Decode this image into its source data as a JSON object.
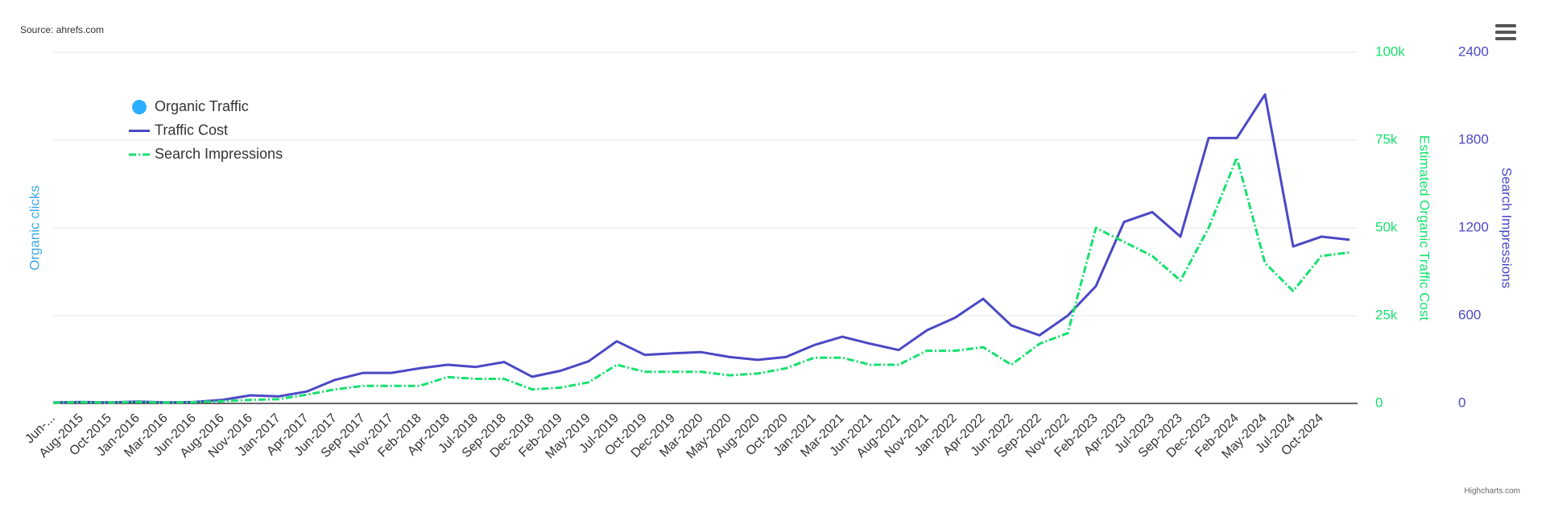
{
  "chart_data": {
    "type": "line",
    "source": "Source: ahrefs.com",
    "credits": "Highcharts.com",
    "ylabel": "Organic clicks",
    "y2label": "Estimated Organic Traffic Cost",
    "y3label": "Search Impressions",
    "categories": [
      "Jun-...",
      "Aug-2015",
      "Oct-2015",
      "Jan-2016",
      "Mar-2016",
      "Jun-2016",
      "Aug-2016",
      "Nov-2016",
      "Jan-2017",
      "Apr-2017",
      "Jun-2017",
      "Sep-2017",
      "Nov-2017",
      "Feb-2018",
      "Apr-2018",
      "Jul-2018",
      "Sep-2018",
      "Dec-2018",
      "Feb-2019",
      "May-2019",
      "Jul-2019",
      "Oct-2019",
      "Dec-2019",
      "Mar-2020",
      "May-2020",
      "Aug-2020",
      "Oct-2020",
      "Jan-2021",
      "Mar-2021",
      "Jun-2021",
      "Aug-2021",
      "Nov-2021",
      "Jan-2022",
      "Apr-2022",
      "Jun-2022",
      "Sep-2022",
      "Nov-2022",
      "Feb-2023",
      "Apr-2023",
      "Jul-2023",
      "Sep-2023",
      "Dec-2023",
      "Feb-2024",
      "May-2024",
      "Jul-2024",
      "Oct-2024",
      null
    ],
    "series": [
      {
        "name": "Organic Traffic",
        "color": "#2caffe",
        "axis": "y"
      },
      {
        "name": "Traffic Cost",
        "color": "#4b48c4",
        "axis": "y2",
        "values": [
          300,
          400,
          300,
          500,
          300,
          400,
          1000,
          2300,
          2000,
          3400,
          6700,
          8700,
          8700,
          10000,
          11000,
          10400,
          11800,
          7600,
          9300,
          12000,
          17700,
          13800,
          14300,
          14600,
          13200,
          12400,
          13200,
          16600,
          19000,
          17000,
          15200,
          20800,
          24400,
          29800,
          22200,
          19400,
          25000,
          33400,
          51700,
          54500,
          47500,
          75600,
          75600,
          88000,
          44700,
          47500,
          46600
        ]
      },
      {
        "name": "Search Impressions",
        "color": "#17e06f",
        "axis": "y3",
        "dashed": true,
        "values": [
          5,
          8,
          6,
          10,
          6,
          8,
          15,
          24,
          29,
          60,
          96,
          120,
          120,
          120,
          180,
          168,
          168,
          96,
          108,
          144,
          264,
          216,
          216,
          216,
          192,
          204,
          240,
          312,
          312,
          264,
          264,
          360,
          360,
          384,
          264,
          408,
          480,
          1200,
          1104,
          1008,
          840,
          1200,
          1680,
          960,
          768,
          1008,
          1032
        ]
      }
    ],
    "y2lim": [
      0,
      100000
    ],
    "y2ticks": [
      0,
      {
        "value": 25000,
        "label": "25k"
      },
      {
        "value": 50000,
        "label": "50k"
      },
      {
        "value": 75000,
        "label": "75k"
      },
      {
        "value": 100000,
        "label": "100k"
      }
    ],
    "y3lim": [
      0,
      2400
    ],
    "y3ticks": [
      0,
      600,
      1200,
      1800,
      2400
    ],
    "grid": true
  }
}
